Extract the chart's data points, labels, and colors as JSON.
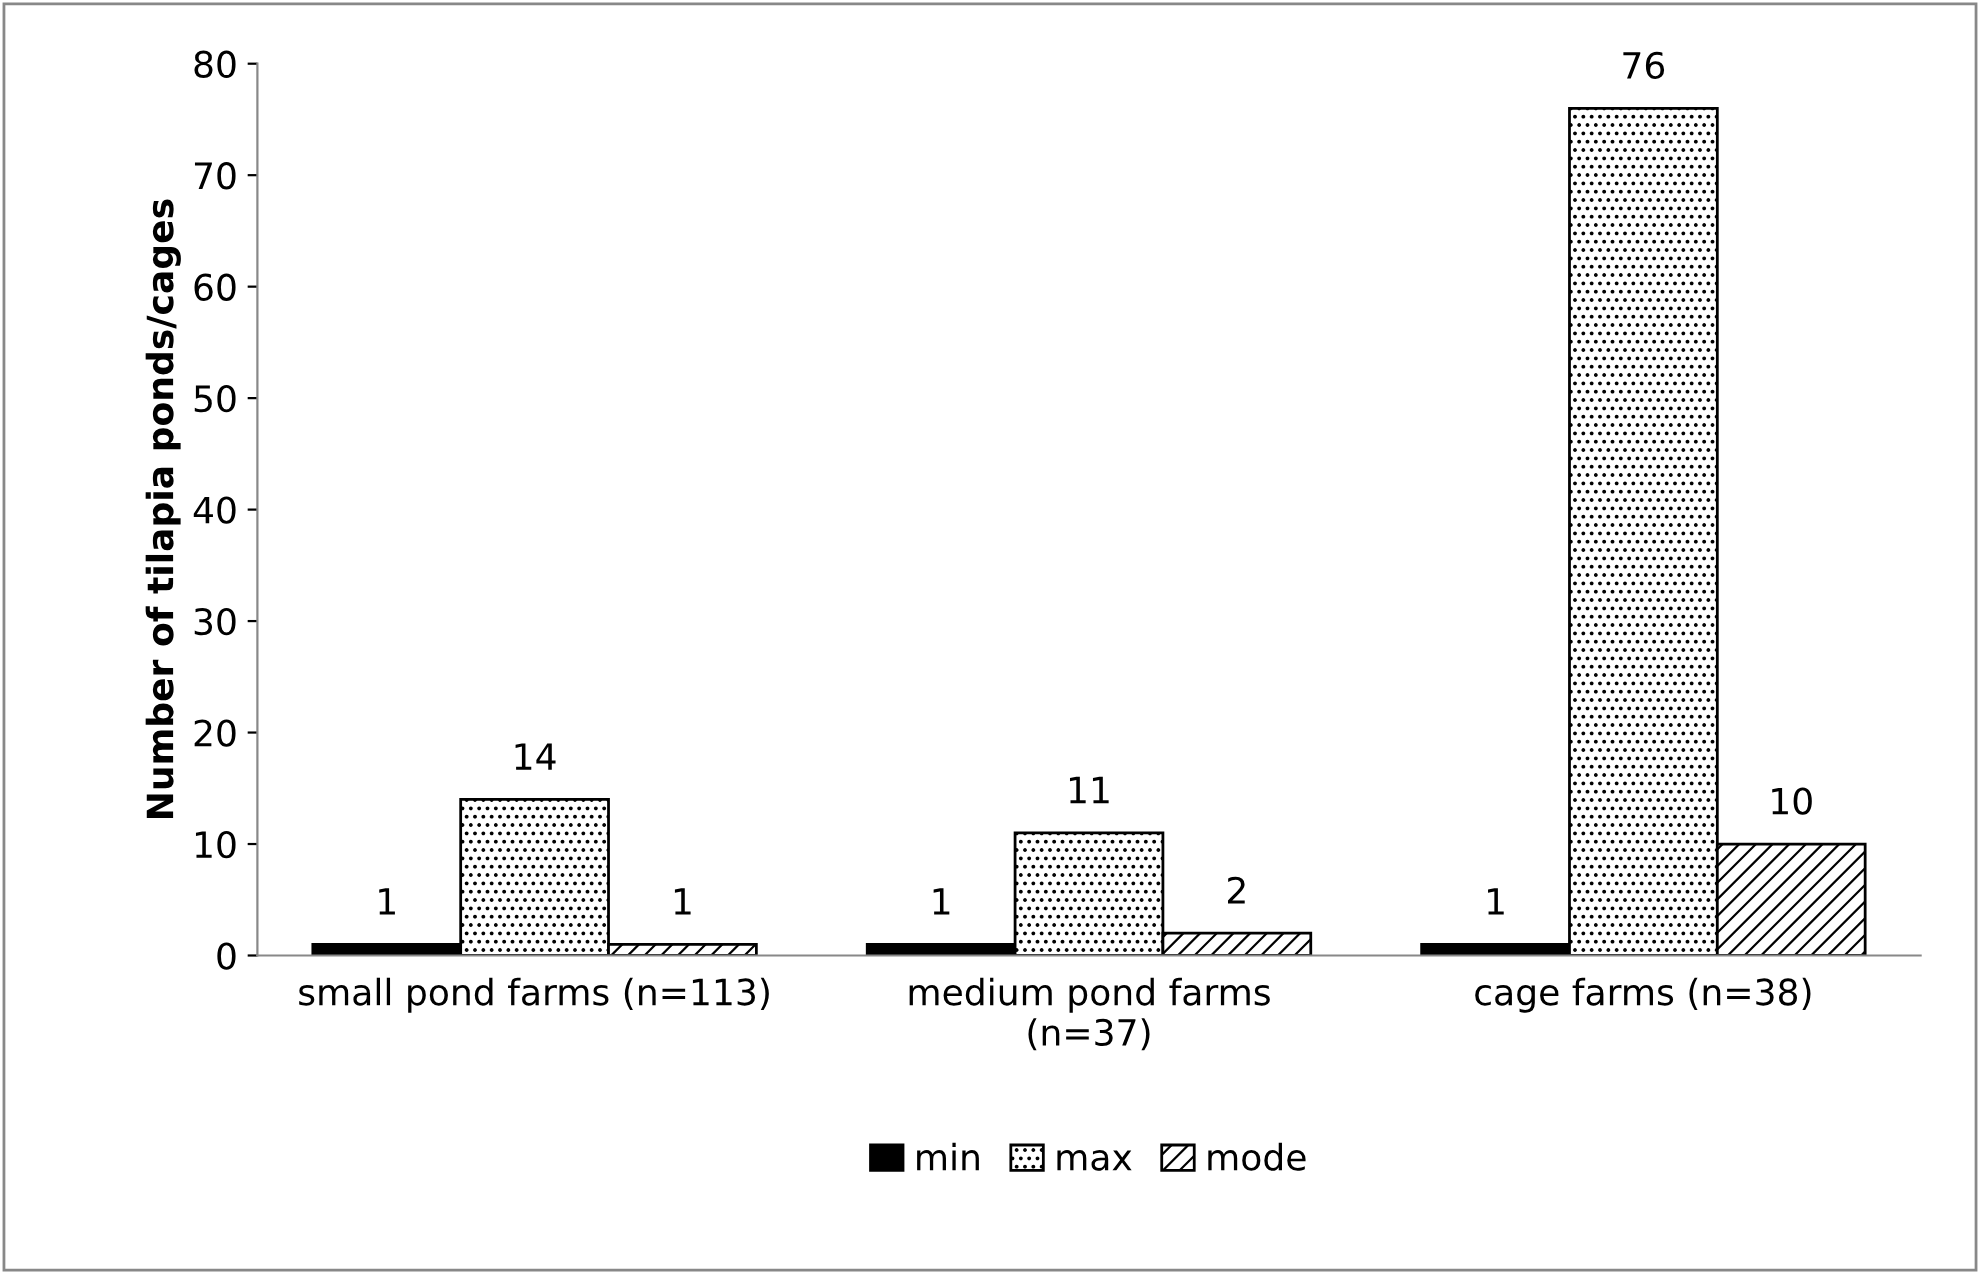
{
  "chart_data": {
    "type": "bar",
    "ylabel": "Number of tilapia ponds/cages",
    "categories": [
      "small pond farms (n=113)",
      "medium pond farms\n(n=37)",
      "cage farms (n=38)"
    ],
    "series": [
      {
        "name": "min",
        "color": "#000000",
        "values": [
          1,
          1,
          1
        ]
      },
      {
        "name": "max",
        "color": "#000000",
        "values": [
          14,
          11,
          76
        ]
      },
      {
        "name": "mode",
        "color": "#000000",
        "values": [
          1,
          2,
          10
        ]
      }
    ],
    "ylim": [
      0,
      80
    ],
    "yticks": [
      0,
      10,
      20,
      30,
      40,
      50,
      60,
      70,
      80
    ],
    "grid": false,
    "legend": "bottom",
    "data_labels": true
  }
}
